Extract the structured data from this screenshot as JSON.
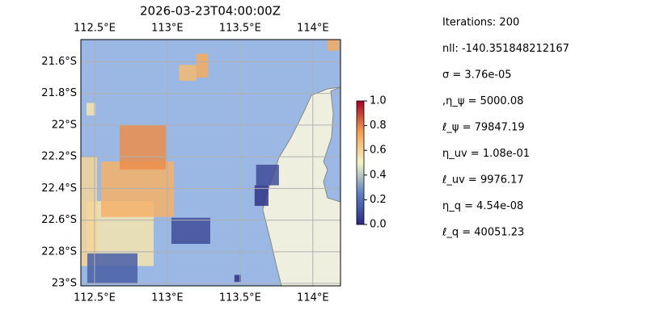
{
  "chart_data": {
    "type": "map",
    "title": "2026-03-23T04:00:00Z",
    "xlim": [
      112.406,
      114.19
    ],
    "ylim": [
      21.46,
      23.015
    ],
    "xticks": [
      {
        "value": 112.5,
        "label": "112.5°E"
      },
      {
        "value": 113,
        "label": "113°E"
      },
      {
        "value": 113.5,
        "label": "113.5°E"
      },
      {
        "value": 114,
        "label": "114°E"
      }
    ],
    "yticks": [
      {
        "value": 21.6,
        "label": "21.6°S"
      },
      {
        "value": 21.8,
        "label": "21.8°S"
      },
      {
        "value": 22,
        "label": "22°S"
      },
      {
        "value": 22.2,
        "label": "22.2°S"
      },
      {
        "value": 22.4,
        "label": "22.4°S"
      },
      {
        "value": 22.6,
        "label": "22.6°S"
      },
      {
        "value": 22.8,
        "label": "22.8°S"
      },
      {
        "value": 23,
        "label": "23°S"
      }
    ],
    "grid": true,
    "clim": [
      0,
      1
    ],
    "cticks": [
      {
        "value": 0,
        "label": "0.0"
      },
      0.2,
      0.4,
      0.6,
      0.8,
      {
        "value": 1,
        "label": "1.0"
      }
    ],
    "patches": [
      {
        "lon": [
          112.445,
          112.906
        ],
        "lat": [
          22.48,
          22.89
        ],
        "value": 0.55
      },
      {
        "lon": [
          112.406,
          112.517
        ],
        "lat": [
          22.2,
          22.89
        ],
        "value": 0.6
      },
      {
        "lon": [
          112.545,
          113.045
        ],
        "lat": [
          22.23,
          22.58
        ],
        "value": 0.7
      },
      {
        "lon": [
          112.673,
          112.99
        ],
        "lat": [
          22.0,
          22.28
        ],
        "value": 0.78
      },
      {
        "lon": [
          112.45,
          112.795
        ],
        "lat": [
          22.81,
          23.0
        ],
        "value": 0.15
      },
      {
        "lon": [
          112.445,
          112.506
        ],
        "lat": [
          21.86,
          21.94
        ],
        "value": 0.55
      },
      {
        "lon": [
          113.028,
          113.295
        ],
        "lat": [
          22.585,
          22.75
        ],
        "value": 0.1
      },
      {
        "lon": [
          113.61,
          113.767
        ],
        "lat": [
          22.25,
          22.38
        ],
        "value": 0.1
      },
      {
        "lon": [
          113.6,
          113.695
        ],
        "lat": [
          22.38,
          22.51
        ],
        "value": 0.03
      },
      {
        "lon": [
          113.461,
          113.506
        ],
        "lat": [
          22.946,
          22.99
        ],
        "value": 0.02
      },
      {
        "lon": [
          113.08,
          113.2
        ],
        "lat": [
          21.62,
          21.72
        ],
        "value": 0.68
      },
      {
        "lon": [
          113.2,
          113.28
        ],
        "lat": [
          21.55,
          21.7
        ],
        "value": 0.72
      },
      {
        "lon": [
          114.1,
          114.18
        ],
        "lat": [
          21.45,
          21.53
        ],
        "value": 0.72
      }
    ],
    "annotations": [
      "Iterations: 200",
      "nll: -140.351848212167",
      "σ = 3.76e-05",
      ",η_ψ = 5000.08",
      "ℓ_ψ = 79847.19",
      "η_uv = 1.08e-01",
      "ℓ_uv = 9976.17",
      "η_q = 4.54e-08",
      "ℓ_q = 40051.23"
    ]
  }
}
